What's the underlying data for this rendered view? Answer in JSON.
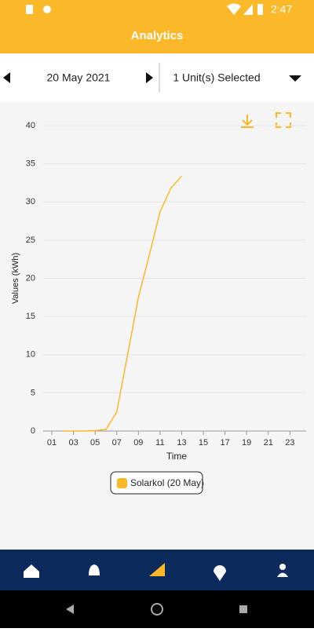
{
  "status_bar": {
    "time": "2:47"
  },
  "header": {
    "title": "Analytics"
  },
  "date_selector": {
    "date": "20 May 2021"
  },
  "unit_selector": {
    "label": "1 Unit(s) Selected"
  },
  "chart_data": {
    "type": "line",
    "y_label": "Values (kWh)",
    "x_label": "Time",
    "x": [
      2,
      3,
      4,
      5,
      6,
      7,
      8,
      9,
      10,
      11,
      12,
      13
    ],
    "series": [
      {
        "name": "Solarkol (20 May)",
        "color": "#fbb829",
        "values": [
          0,
          0,
          0,
          0.05,
          0.2,
          2.5,
          10,
          17.5,
          23,
          28.7,
          31.8,
          33.4
        ]
      }
    ],
    "xlim": [
      0.2,
      24.5
    ],
    "xticks": [
      {
        "value": 1,
        "label": "01"
      },
      {
        "value": 3,
        "label": "03"
      },
      {
        "value": 5,
        "label": "05"
      },
      {
        "value": 7,
        "label": "07"
      },
      {
        "value": 9,
        "label": "09"
      },
      11,
      13,
      15,
      17,
      19,
      21,
      23
    ],
    "ylim": [
      0,
      40
    ],
    "yticks": [
      0,
      5,
      10,
      15,
      20,
      25,
      30,
      35,
      40
    ],
    "grid": true
  }
}
